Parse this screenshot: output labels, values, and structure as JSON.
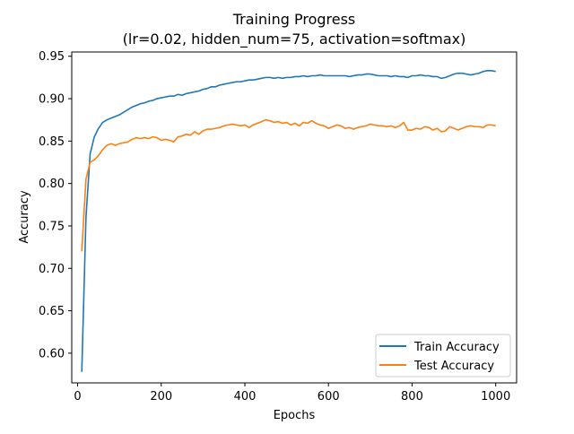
{
  "chart_data": {
    "type": "line",
    "title": "Training Progress",
    "subtitle": "(lr=0.02, hidden_num=75, activation=softmax)",
    "xlabel": "Epochs",
    "ylabel": "Accuracy",
    "xlim": [
      -14,
      1050
    ],
    "ylim": [
      0.565,
      0.955
    ],
    "xticks": [
      0,
      200,
      400,
      600,
      800,
      1000
    ],
    "xtick_labels": [
      "0",
      "200",
      "400",
      "600",
      "800",
      "1000"
    ],
    "yticks": [
      0.6,
      0.65,
      0.7,
      0.75,
      0.8,
      0.85,
      0.9,
      0.95
    ],
    "ytick_labels": [
      "0.60",
      "0.65",
      "0.70",
      "0.75",
      "0.80",
      "0.85",
      "0.90",
      "0.95"
    ],
    "grid": false,
    "legend_position": "lower-right",
    "x": [
      10,
      20,
      30,
      40,
      50,
      60,
      70,
      80,
      90,
      100,
      110,
      120,
      130,
      140,
      150,
      160,
      170,
      180,
      190,
      200,
      210,
      220,
      230,
      240,
      250,
      260,
      270,
      280,
      290,
      300,
      310,
      320,
      330,
      340,
      350,
      360,
      370,
      380,
      390,
      400,
      410,
      420,
      430,
      440,
      450,
      460,
      470,
      480,
      490,
      500,
      510,
      520,
      530,
      540,
      550,
      560,
      570,
      580,
      590,
      600,
      610,
      620,
      630,
      640,
      650,
      660,
      670,
      680,
      690,
      700,
      710,
      720,
      730,
      740,
      750,
      760,
      770,
      780,
      790,
      800,
      810,
      820,
      830,
      840,
      850,
      860,
      870,
      880,
      890,
      900,
      910,
      920,
      930,
      940,
      950,
      960,
      970,
      980,
      990,
      1000
    ],
    "series": [
      {
        "name": "Train Accuracy",
        "color": "#1f77b4",
        "values": [
          0.578,
          0.76,
          0.835,
          0.855,
          0.865,
          0.872,
          0.875,
          0.877,
          0.879,
          0.881,
          0.884,
          0.887,
          0.89,
          0.892,
          0.894,
          0.895,
          0.897,
          0.898,
          0.9,
          0.901,
          0.902,
          0.903,
          0.903,
          0.905,
          0.904,
          0.906,
          0.907,
          0.908,
          0.909,
          0.911,
          0.912,
          0.914,
          0.914,
          0.916,
          0.917,
          0.918,
          0.919,
          0.92,
          0.92,
          0.921,
          0.922,
          0.922,
          0.923,
          0.924,
          0.925,
          0.925,
          0.924,
          0.925,
          0.924,
          0.925,
          0.925,
          0.926,
          0.926,
          0.927,
          0.926,
          0.927,
          0.927,
          0.928,
          0.927,
          0.927,
          0.927,
          0.927,
          0.927,
          0.927,
          0.926,
          0.927,
          0.928,
          0.928,
          0.929,
          0.929,
          0.928,
          0.927,
          0.927,
          0.927,
          0.926,
          0.927,
          0.926,
          0.926,
          0.925,
          0.927,
          0.927,
          0.928,
          0.927,
          0.927,
          0.926,
          0.926,
          0.924,
          0.925,
          0.927,
          0.929,
          0.93,
          0.93,
          0.929,
          0.928,
          0.929,
          0.93,
          0.932,
          0.933,
          0.933,
          0.932
        ]
      },
      {
        "name": "Test Accuracy",
        "color": "#ff7f0e",
        "values": [
          0.72,
          0.805,
          0.825,
          0.828,
          0.833,
          0.84,
          0.845,
          0.847,
          0.845,
          0.847,
          0.848,
          0.849,
          0.852,
          0.854,
          0.853,
          0.854,
          0.853,
          0.855,
          0.854,
          0.851,
          0.852,
          0.851,
          0.849,
          0.855,
          0.856,
          0.858,
          0.857,
          0.861,
          0.858,
          0.862,
          0.864,
          0.864,
          0.865,
          0.866,
          0.868,
          0.869,
          0.87,
          0.869,
          0.868,
          0.869,
          0.866,
          0.869,
          0.871,
          0.873,
          0.875,
          0.874,
          0.872,
          0.873,
          0.871,
          0.872,
          0.869,
          0.871,
          0.868,
          0.872,
          0.871,
          0.874,
          0.871,
          0.869,
          0.868,
          0.865,
          0.867,
          0.869,
          0.868,
          0.865,
          0.866,
          0.864,
          0.866,
          0.867,
          0.868,
          0.87,
          0.869,
          0.868,
          0.868,
          0.867,
          0.868,
          0.866,
          0.868,
          0.872,
          0.863,
          0.863,
          0.865,
          0.864,
          0.867,
          0.866,
          0.863,
          0.865,
          0.861,
          0.862,
          0.867,
          0.865,
          0.863,
          0.865,
          0.867,
          0.868,
          0.867,
          0.867,
          0.866,
          0.869,
          0.869,
          0.868
        ]
      }
    ]
  }
}
